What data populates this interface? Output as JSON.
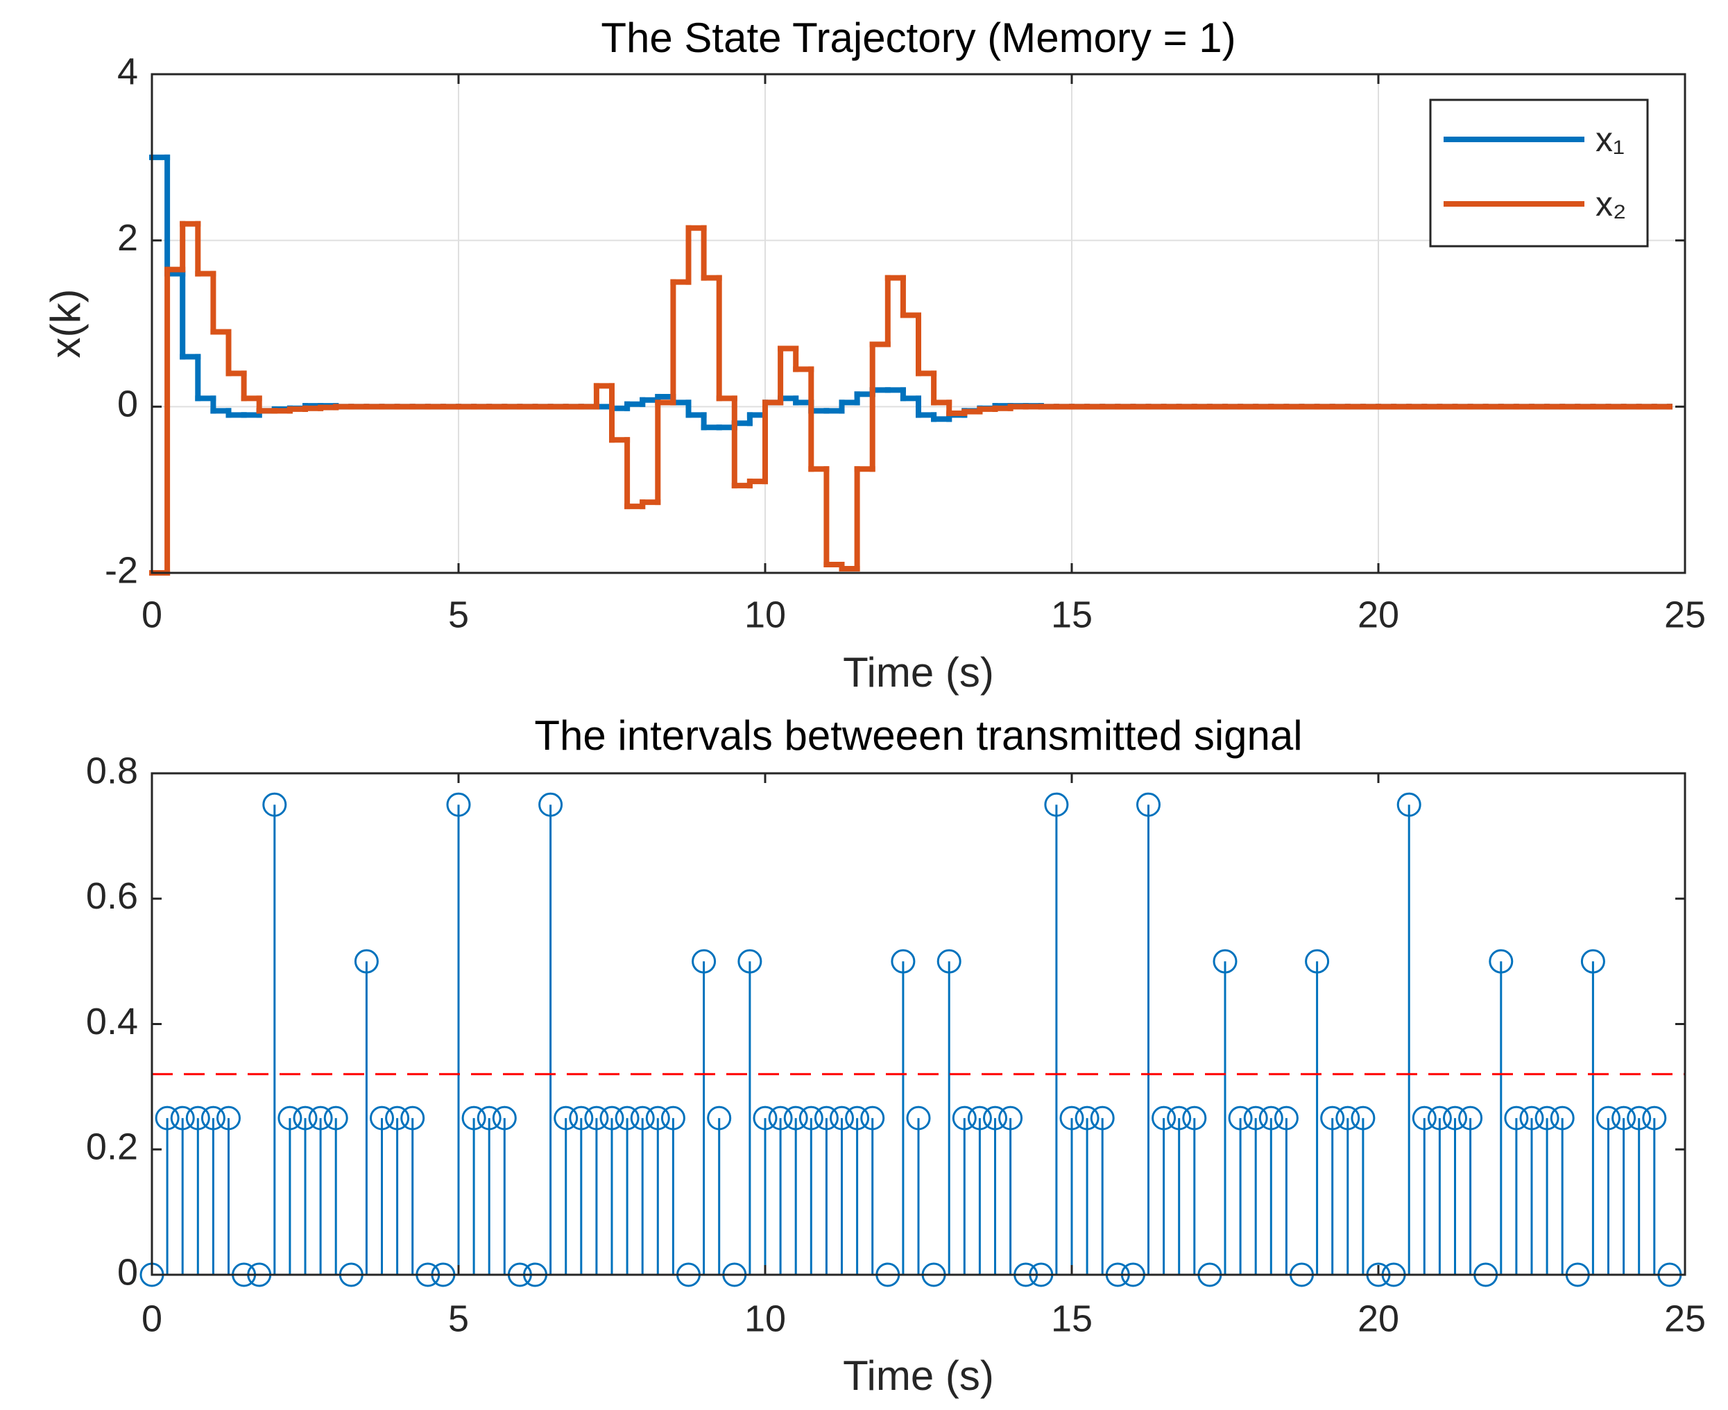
{
  "chart_data": [
    {
      "type": "stairs",
      "title": "The State Trajectory (Memory = 1)",
      "xlabel": "Time (s)",
      "ylabel": "x(k)",
      "x": [
        0,
        0.25,
        0.5,
        0.75,
        1,
        1.25,
        1.5,
        1.75,
        2,
        2.25,
        2.5,
        2.75,
        3,
        3.25,
        3.5,
        3.75,
        4,
        4.25,
        4.5,
        4.75,
        5,
        5.25,
        5.5,
        5.75,
        6,
        6.25,
        6.5,
        6.75,
        7,
        7.25,
        7.5,
        7.75,
        8,
        8.25,
        8.5,
        8.75,
        9,
        9.25,
        9.5,
        9.75,
        10,
        10.25,
        10.5,
        10.75,
        11,
        11.25,
        11.5,
        11.75,
        12,
        12.25,
        12.5,
        12.75,
        13,
        13.25,
        13.5,
        13.75,
        14,
        14.25,
        14.5,
        14.75,
        15,
        15.25,
        15.5,
        15.75,
        16,
        16.25,
        16.5,
        16.75,
        17,
        17.25,
        17.5,
        17.75,
        18,
        18.25,
        18.5,
        18.75,
        19,
        19.25,
        19.5,
        19.75,
        20,
        20.25,
        20.5,
        20.75,
        21,
        21.25,
        21.5,
        21.75,
        22,
        22.25,
        22.5,
        22.75,
        23,
        23.25,
        23.5,
        23.75,
        24,
        24.25,
        24.5,
        24.75
      ],
      "series": [
        {
          "name": "x₁",
          "color": "#0072bd",
          "values": [
            3,
            1.6,
            0.6,
            0.1,
            -0.05,
            -0.1,
            -0.1,
            -0.05,
            -0.03,
            -0.02,
            0.01,
            0.01,
            0,
            0,
            0,
            0,
            0,
            0,
            0,
            0,
            0,
            0,
            0,
            0,
            0,
            0,
            0,
            0,
            0,
            0,
            -0.02,
            0.03,
            0.08,
            0.12,
            0.05,
            -0.1,
            -0.25,
            -0.25,
            -0.2,
            -0.1,
            0.05,
            0.1,
            0.05,
            -0.05,
            -0.05,
            0.05,
            0.15,
            0.2,
            0.2,
            0.1,
            -0.1,
            -0.15,
            -0.1,
            -0.05,
            -0.02,
            0.01,
            0.01,
            0.01,
            0,
            0,
            0,
            0,
            0,
            0,
            0,
            0,
            0,
            0,
            0,
            0,
            0,
            0,
            0,
            0,
            0,
            0,
            0,
            0,
            0,
            0,
            0,
            0,
            0,
            0,
            0,
            0,
            0,
            0,
            0,
            0,
            0,
            0,
            0,
            0,
            0,
            0,
            0,
            0,
            0,
            0
          ]
        },
        {
          "name": "x₂",
          "color": "#d95319",
          "values": [
            -2,
            1.65,
            2.2,
            1.6,
            0.9,
            0.4,
            0.1,
            -0.05,
            -0.05,
            -0.03,
            -0.02,
            -0.01,
            0,
            0,
            0,
            0,
            0,
            0,
            0,
            0,
            0,
            0,
            0,
            0,
            0,
            0,
            0,
            0,
            0,
            0.25,
            -0.4,
            -1.2,
            -1.15,
            0.05,
            1.5,
            2.15,
            1.55,
            0.1,
            -0.95,
            -0.9,
            0.05,
            0.7,
            0.45,
            -0.75,
            -1.9,
            -1.95,
            -0.75,
            0.75,
            1.55,
            1.1,
            0.4,
            0.05,
            -0.08,
            -0.06,
            -0.03,
            -0.02,
            0,
            0,
            0,
            0,
            0,
            0,
            0,
            0,
            0,
            0,
            0,
            0,
            0,
            0,
            0,
            0,
            0,
            0,
            0,
            0,
            0,
            0,
            0,
            0,
            0,
            0,
            0,
            0,
            0,
            0,
            0,
            0,
            0,
            0,
            0,
            0,
            0,
            0,
            0,
            0,
            0,
            0,
            0,
            0
          ]
        }
      ],
      "xlim": [
        0,
        25
      ],
      "xticks": [
        0,
        5,
        10,
        15,
        20,
        25
      ],
      "ylim": [
        -2,
        4
      ],
      "yticks": [
        -2,
        0,
        2,
        4
      ],
      "grid": true,
      "legend": "upper right"
    },
    {
      "type": "stem",
      "title": "The intervals betweeen transmitted signal",
      "xlabel": "Time (s)",
      "x": [
        0,
        0.25,
        0.5,
        0.75,
        1,
        1.25,
        1.5,
        1.75,
        2,
        2.25,
        2.5,
        2.75,
        3,
        3.25,
        3.5,
        3.75,
        4,
        4.25,
        4.5,
        4.75,
        5,
        5.25,
        5.5,
        5.75,
        6,
        6.25,
        6.5,
        6.75,
        7,
        7.25,
        7.5,
        7.75,
        8,
        8.25,
        8.5,
        8.75,
        9,
        9.25,
        9.5,
        9.75,
        10,
        10.25,
        10.5,
        10.75,
        11,
        11.25,
        11.5,
        11.75,
        12,
        12.25,
        12.5,
        12.75,
        13,
        13.25,
        13.5,
        13.75,
        14,
        14.25,
        14.5,
        14.75,
        15,
        15.25,
        15.5,
        15.75,
        16,
        16.25,
        16.5,
        16.75,
        17,
        17.25,
        17.5,
        17.75,
        18,
        18.25,
        18.5,
        18.75,
        19,
        19.25,
        19.5,
        19.75,
        20,
        20.25,
        20.5,
        20.75,
        21,
        21.25,
        21.5,
        21.75,
        22,
        22.25,
        22.5,
        22.75,
        23,
        23.25,
        23.5,
        23.75,
        24,
        24.25,
        24.5,
        24.75
      ],
      "values": [
        0,
        0.25,
        0.25,
        0.25,
        0.25,
        0.25,
        0,
        0,
        0.75,
        0.25,
        0.25,
        0.25,
        0.25,
        0,
        0.5,
        0.25,
        0.25,
        0.25,
        0,
        0,
        0.75,
        0.25,
        0.25,
        0.25,
        0,
        0,
        0.75,
        0.25,
        0.25,
        0.25,
        0.25,
        0.25,
        0.25,
        0.25,
        0.25,
        0,
        0.5,
        0.25,
        0,
        0.5,
        0.25,
        0.25,
        0.25,
        0.25,
        0.25,
        0.25,
        0.25,
        0.25,
        0,
        0.5,
        0.25,
        0,
        0.5,
        0.25,
        0.25,
        0.25,
        0.25,
        0,
        0,
        0.75,
        0.25,
        0.25,
        0.25,
        0,
        0,
        0.75,
        0.25,
        0.25,
        0.25,
        0,
        0.5,
        0.25,
        0.25,
        0.25,
        0.25,
        0,
        0.5,
        0.25,
        0.25,
        0.25,
        0,
        0,
        0.75,
        0.25,
        0.25,
        0.25,
        0.25,
        0,
        0.5,
        0.25,
        0.25,
        0.25,
        0.25,
        0,
        0.5,
        0.25,
        0.25,
        0.25,
        0.25,
        0
      ],
      "color": "#0072bd",
      "hline": 0.32,
      "hline_color": "#ff0000",
      "xlim": [
        0,
        25
      ],
      "xticks": [
        0,
        5,
        10,
        15,
        20,
        25
      ],
      "ylim": [
        0,
        0.8
      ],
      "yticks": [
        0,
        0.2,
        0.4,
        0.6,
        0.8
      ],
      "grid": false
    }
  ]
}
